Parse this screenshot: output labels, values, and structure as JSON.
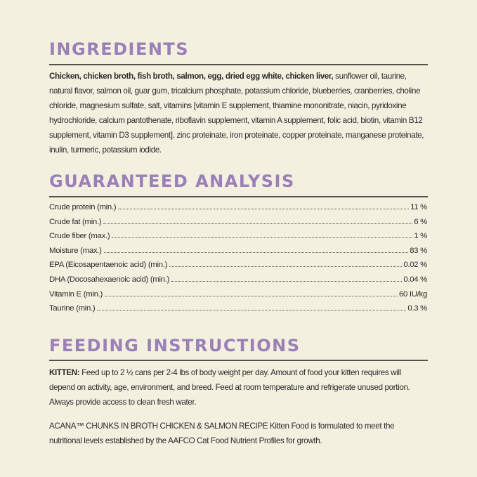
{
  "ingredients": {
    "title": "INGREDIENTS",
    "bold_text": "Chicken, chicken broth, fish broth, salmon, egg, dried egg white, chicken liver,",
    "text": " sunflower oil, taurine, natural flavor, salmon oil, guar gum, tricalcium phosphate, potassium chloride, blueberries, cranberries, choline chloride, magnesium sulfate, salt, vitamins [vitamin E supplement, thiamine mononitrate, niacin, pyridoxine hydrochloride, calcium pantothenate, riboflavin supplement, vitamin A supplement, folic acid, biotin, vitamin B12 supplement, vitamin D3 supplement], zinc proteinate, iron proteinate, copper proteinate, manganese proteinate, inulin, turmeric, potassium iodide."
  },
  "analysis": {
    "title": "GUARANTEED ANALYSIS",
    "rows": [
      {
        "label": "Crude protein (min.)",
        "value": "11 %"
      },
      {
        "label": "Crude fat (min.)",
        "value": "6 %"
      },
      {
        "label": "Crude fiber (max.)",
        "value": "1 %"
      },
      {
        "label": "Moisture (max.)",
        "value": "83 %"
      },
      {
        "label": "EPA (Eicosapentaenoic acid) (min.)",
        "value": "0.02 %"
      },
      {
        "label": "DHA (Docosahexaenoic acid) (min.)",
        "value": "0.04 %"
      },
      {
        "label": "Vitamin E (min.)",
        "value": "60 IU/kg"
      },
      {
        "label": "Taurine (min.)",
        "value": "0.3 %"
      }
    ]
  },
  "feeding": {
    "title": "FEEDING INSTRUCTIONS",
    "kitten_label": "KITTEN:",
    "kitten_text": " Feed up to 2 ½ cans per 2-4 lbs of body weight per day. Amount of food your kitten requires will depend on activity, age, environment, and breed. Feed at room temperature and refrigerate unused portion. Always provide access to clean fresh water.",
    "statement": "ACANA™ CHUNKS IN BROTH CHICKEN & SALMON RECIPE Kitten Food is formulated to meet the nutritional levels established by the AAFCO Cat Food Nutrient Profiles for growth."
  }
}
